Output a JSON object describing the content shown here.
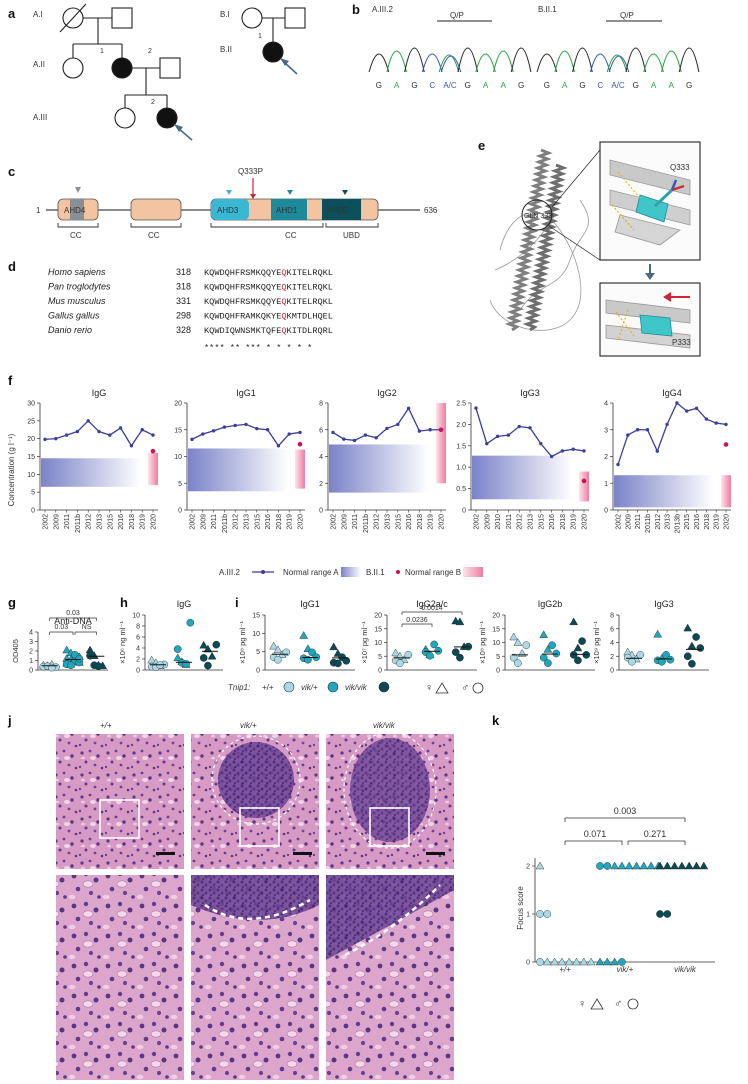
{
  "colors": {
    "affected": "#111111",
    "arrow": "#4a6a88",
    "pat_a": "#3a3f9a",
    "pat_b": "#d0114f",
    "tnip_wt": "#a9d8e6",
    "tnip_het": "#1fa7bd",
    "tnip_hom": "#0b4a55",
    "domain_beige": "#f2c4a2",
    "domain_ahd3": "#3ab7d3",
    "domain_ahd1": "#1d8a9c",
    "domain_ahd2": "#0c4f5a",
    "domain_ahd4": "#8a8f96",
    "mutation": "#d0243a",
    "dna_g": "#2e2e2e",
    "dna_a": "#2aa542",
    "dna_c": "#3a57c5"
  },
  "panel_a": {
    "label": "a",
    "gen_a1": "A.I",
    "gen_a2": "A.II",
    "gen_a3": "A.III",
    "gen_b1": "B.I",
    "gen_b2": "B.II",
    "ind_a2_1": "1",
    "ind_a2_2": "2",
    "ind_a3_2": "2",
    "ind_b2_1": "1"
  },
  "panel_b": {
    "label": "b",
    "trace1_label": "A.III.2",
    "trace2_label": "B.II.1",
    "codon_label": "Q/P",
    "bases": [
      "G",
      "A",
      "G",
      "C",
      "A/C",
      "G",
      "A",
      "A",
      "G"
    ]
  },
  "panel_c": {
    "label": "c",
    "start": "1",
    "end": "636",
    "mutation": "Q333P",
    "domains": {
      "ahd4": "AHD4",
      "ahd3": "AHD3",
      "ahd1": "AHD1",
      "ahd2": "AHD2"
    },
    "brackets": [
      "CC",
      "CC",
      "CC",
      "UBD"
    ]
  },
  "panel_d": {
    "label": "d",
    "rows": [
      {
        "species": "Homo sapiens",
        "pos": "318",
        "pre": "KQWDQHFRSMKQQYE",
        "mut": "Q",
        "post": "KITELRQKL"
      },
      {
        "species": "Pan troglodytes",
        "pos": "318",
        "pre": "KQWDQHFRSMKQQYE",
        "mut": "Q",
        "post": "KITELRQKL"
      },
      {
        "species": "Mus musculus",
        "pos": "331",
        "pre": "KQWDQHFRSMKQQYE",
        "mut": "Q",
        "post": "KITELRQKL"
      },
      {
        "species": "Gallus gallus",
        "pos": "298",
        "pre": "KQWDQHFRAMKQKYE",
        "mut": "Q",
        "post": "KMTDLHQEL"
      },
      {
        "species": "Danio rerio",
        "pos": "328",
        "pre": "KQWDIQWNSMKTQFE",
        "mut": "Q",
        "post": "KITDLRQRL"
      }
    ],
    "conservation": "****     **   *** * * * * *"
  },
  "panel_e": {
    "label": "e",
    "gln_label": "GLN 333",
    "q_label": "Q333",
    "p_label": "P333"
  },
  "panel_f": {
    "label": "f",
    "ylabel": "Concentration (g l⁻¹)",
    "legend": {
      "a": "A.III.2",
      "range_a": "Normal range A",
      "b": "B.II.1",
      "range_b": "Normal range B"
    },
    "plots": [
      {
        "title": "IgG",
        "ymax": 30,
        "yticks": [
          "0",
          "5",
          "10",
          "15",
          "20",
          "25",
          "30"
        ],
        "x": [
          "2002",
          "2009",
          "2011",
          "2011b",
          "2012",
          "2013",
          "2015",
          "2016",
          "2018",
          "2019",
          "2020"
        ],
        "values": [
          19.8,
          20.0,
          21.0,
          22.0,
          25.0,
          22.0,
          21.0,
          23.0,
          18.0,
          22.5,
          21.0
        ],
        "range_a": [
          6.5,
          14.5
        ],
        "b_value": 16.5,
        "range_b": [
          7.0,
          16.0
        ]
      },
      {
        "title": "IgG1",
        "ymax": 20,
        "yticks": [
          "0",
          "5",
          "10",
          "15",
          "20"
        ],
        "x": [
          "2002",
          "2009",
          "2011",
          "2011b",
          "2012",
          "2013",
          "2015",
          "2016",
          "2018",
          "2019",
          "2020"
        ],
        "values": [
          13.2,
          14.2,
          14.8,
          15.5,
          15.8,
          16.0,
          15.2,
          15.0,
          12.0,
          14.2,
          14.5
        ],
        "range_a": [
          3.5,
          11.5
        ],
        "b_value": 12.3,
        "range_b": [
          4.0,
          11.3
        ]
      },
      {
        "title": "IgG2",
        "ymax": 8,
        "yticks": [
          "0",
          "2",
          "4",
          "6",
          "8"
        ],
        "x": [
          "2002",
          "2009",
          "2011",
          "2011b",
          "2012",
          "2013",
          "2015",
          "2016",
          "2018",
          "2019",
          "2020"
        ],
        "values": [
          5.8,
          5.3,
          5.2,
          5.6,
          5.4,
          6.1,
          6.4,
          7.6,
          5.9,
          6.0,
          6.0
        ],
        "range_a": [
          1.3,
          4.9
        ],
        "b_value": 6.0,
        "range_b": [
          2.0,
          8.0
        ]
      },
      {
        "title": "IgG3",
        "ymax": 2.5,
        "yticks": [
          "0",
          "0.5",
          "1.0",
          "1.5",
          "2.0",
          "2.5"
        ],
        "x": [
          "2002",
          "2009",
          "2010",
          "2011",
          "2012",
          "2013",
          "2015",
          "2016",
          "2018",
          "2019",
          "2020"
        ],
        "values": [
          2.38,
          1.55,
          1.72,
          1.75,
          1.95,
          1.92,
          1.55,
          1.25,
          1.38,
          1.42,
          1.38
        ],
        "range_a": [
          0.25,
          1.27
        ],
        "b_value": 0.68,
        "range_b": [
          0.2,
          0.9
        ]
      },
      {
        "title": "IgG4",
        "ymax": 4,
        "yticks": [
          "0",
          "1",
          "2",
          "3",
          "4"
        ],
        "x": [
          "2002",
          "2009",
          "2011",
          "2011b",
          "2012",
          "2013",
          "2013b",
          "2015",
          "2016",
          "2018",
          "2019",
          "2020"
        ],
        "values": [
          1.7,
          2.8,
          3.0,
          3.0,
          2.2,
          3.2,
          4.0,
          3.7,
          3.8,
          3.4,
          3.25,
          3.2
        ],
        "range_a": [
          0.1,
          1.3
        ],
        "b_value": 2.45,
        "range_b": [
          0.1,
          1.3
        ]
      }
    ]
  },
  "panel_g": {
    "label": "g",
    "title": "Anti-DNA",
    "ylabel": "OD405",
    "ymax": 4,
    "yticks": [
      "0",
      "1",
      "2",
      "3",
      "4"
    ],
    "pvals": [
      "0.03",
      "0.03",
      "NS"
    ],
    "groups": [
      {
        "tri": [
          0.5,
          0.45,
          0.6
        ],
        "circ": [
          0.3,
          0.35,
          0.4,
          0.25
        ],
        "mean": 0.45
      },
      {
        "tri": [
          2.1,
          1.8,
          1.5,
          1.4,
          1.2,
          1.1,
          0.9,
          0.8,
          0.7,
          0.6
        ],
        "circ": [
          1.0,
          0.8,
          0.6,
          0.5,
          1.6,
          1.2
        ],
        "mean": 1.1
      },
      {
        "tri": [
          2.1,
          1.5,
          0.5,
          0.45
        ],
        "circ": [
          1.5,
          0.5,
          0.4
        ],
        "mean": 1.45
      }
    ]
  },
  "panel_h": {
    "label": "h",
    "title": "IgG",
    "ylabel": "×10⁶ ng ml⁻¹",
    "ymax": 10,
    "yticks": [
      "0",
      "2",
      "4",
      "6",
      "8",
      "10"
    ],
    "groups": [
      {
        "tri": [
          1.8,
          1.3,
          0.8
        ],
        "circ": [
          1.0,
          0.6,
          0.5,
          0.9
        ],
        "mean": 0.95
      },
      {
        "tri": [
          2.2,
          1.5,
          1.0
        ],
        "circ": [
          8.6,
          3.8,
          1.3,
          1.1
        ],
        "mean": 1.4
      },
      {
        "tri": [
          4.5,
          3.8,
          2.5
        ],
        "circ": [
          4.6,
          2.2,
          0.8
        ],
        "mean": 3.4
      }
    ]
  },
  "panel_i": {
    "label": "i",
    "plots": [
      {
        "title": "IgG1",
        "ylabel": "×10⁸ pg ml⁻¹",
        "ymax": 15,
        "yticks": [
          "0",
          "5",
          "10",
          "15"
        ],
        "pvals": [],
        "groups": [
          {
            "tri": [
              6.5,
              5.5,
              4.2
            ],
            "circ": [
              4.8,
              3.5,
              2.8
            ],
            "mean": 4.3
          },
          {
            "tri": [
              9.4,
              5.8
            ],
            "circ": [
              4.8,
              3.5,
              3.2,
              2.8
            ],
            "mean": 3.4
          },
          {
            "tri": [
              6.3,
              4.5
            ],
            "circ": [
              3.5,
              2.5,
              2.0,
              1.8
            ],
            "mean": 3.3
          }
        ]
      },
      {
        "title": "IgG2a/c",
        "ylabel": "×10⁷ pg ml⁻¹",
        "ymax": 20,
        "yticks": [
          "0",
          "5",
          "10",
          "15",
          "20"
        ],
        "pvals": [
          "0.0236",
          "0.0014"
        ],
        "groups": [
          {
            "tri": [
              6.2,
              5.0,
              3.7
            ],
            "circ": [
              5.5,
              3.5,
              2.5
            ],
            "mean": 4.4
          },
          {
            "tri": [
              7.5,
              5.5
            ],
            "circ": [
              9.3,
              7.0,
              6.5,
              5.2
            ],
            "mean": 6.8
          },
          {
            "tri": [
              17.8,
              17.5,
              8.5
            ],
            "circ": [
              8.5,
              6.5,
              4.5
            ],
            "mean": 8.4
          }
        ]
      },
      {
        "title": "IgG2b",
        "ylabel": "×10⁸ pg ml⁻¹",
        "ymax": 20,
        "yticks": [
          "0",
          "5",
          "10",
          "15",
          "20"
        ],
        "pvals": [],
        "groups": [
          {
            "tri": [
              12.0,
              10.0,
              6.0
            ],
            "circ": [
              9.0,
              4.5,
              2.5
            ],
            "mean": 5.5
          },
          {
            "tri": [
              12.8,
              7.5
            ],
            "circ": [
              9.0,
              6.0,
              4.5,
              2.5
            ],
            "mean": 5.8
          },
          {
            "tri": [
              17.5,
              8.0
            ],
            "circ": [
              10.5,
              5.5,
              5.5,
              3.5
            ],
            "mean": 5.7
          }
        ]
      },
      {
        "title": "IgG3",
        "ylabel": "×10⁹ pg ml⁻¹",
        "ymax": 8,
        "yticks": [
          "0",
          "2",
          "4",
          "6",
          "8"
        ],
        "pvals": [],
        "groups": [
          {
            "tri": [
              2.6,
              2.2,
              1.6
            ],
            "circ": [
              2.2,
              1.8,
              1.2
            ],
            "mean": 1.7
          },
          {
            "tri": [
              5.2,
              1.7
            ],
            "circ": [
              2.2,
              1.5,
              1.4,
              1.2
            ],
            "mean": 1.6
          },
          {
            "tri": [
              6.1,
              3.5
            ],
            "circ": [
              4.8,
              3.2,
              2.0,
              0.9
            ],
            "mean": 3.0
          }
        ]
      }
    ],
    "legend": {
      "tnip": "Tnip1:",
      "wt": "+/+",
      "het": "vik/+",
      "hom": "vik/vik",
      "female": "♀",
      "male": "♂"
    }
  },
  "panel_j": {
    "label": "j",
    "cols": [
      "+/+",
      "vik/+",
      "vik/vik"
    ]
  },
  "panel_k": {
    "label": "k",
    "ylabel": "Focus score",
    "yticks": [
      "0",
      "1",
      "2"
    ],
    "xlabels": [
      "+/+",
      "vik/+",
      "vik/vik"
    ],
    "pvals": [
      "0.003",
      "0.071",
      "0.271"
    ],
    "groups": [
      {
        "tri2": 1,
        "circ1": 2,
        "tri0": 7,
        "circ0": 1
      },
      {
        "tri2": 7,
        "circ2": 2,
        "tri0": 3,
        "circ0": 1
      },
      {
        "tri2": 7,
        "circ1": 2
      }
    ],
    "legend": {
      "female": "♀",
      "male": "♂"
    }
  }
}
